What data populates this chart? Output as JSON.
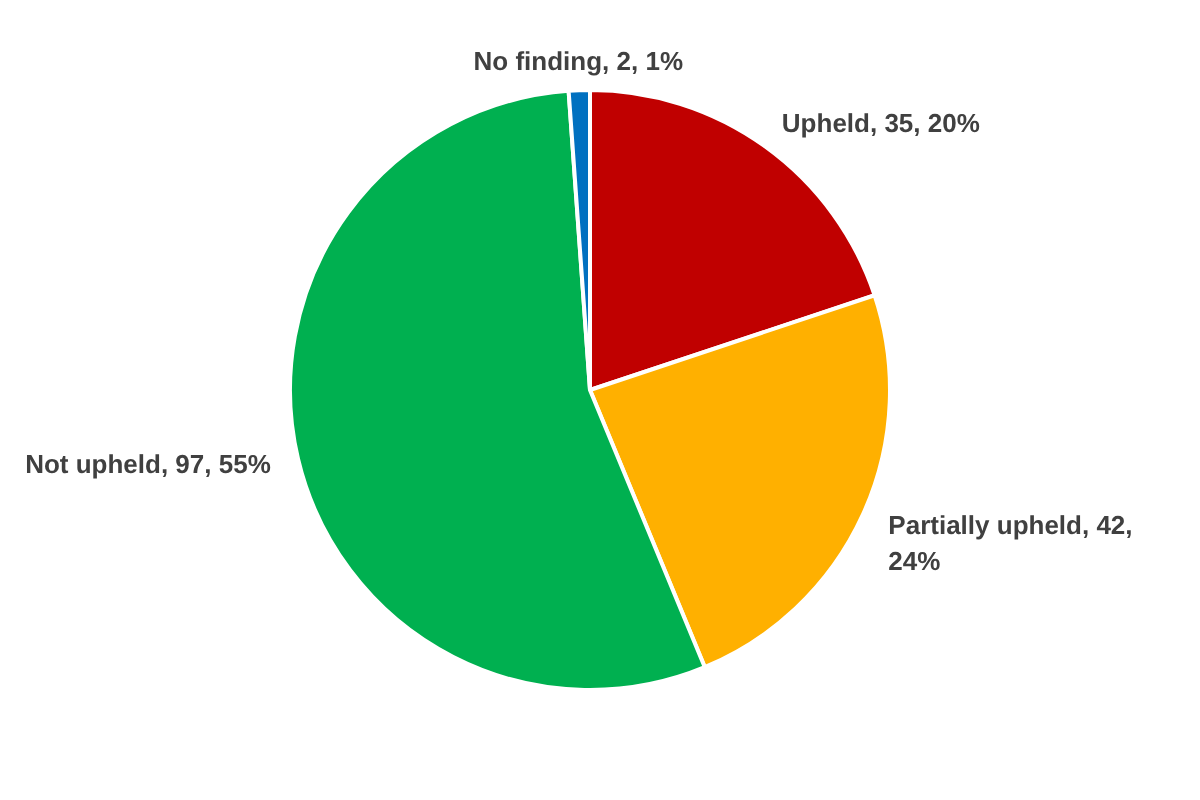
{
  "chart_data": {
    "type": "pie",
    "categories": [
      "Upheld",
      "Partially upheld",
      "Not upheld",
      "No finding"
    ],
    "values": [
      35,
      42,
      97,
      2
    ],
    "colors": [
      "#c00000",
      "#ffb000",
      "#00b050",
      "#0070c0"
    ],
    "value_labels": [
      "35, 20%",
      "42, 24%",
      "97, 55%",
      "2, 1%"
    ],
    "legend": false
  }
}
